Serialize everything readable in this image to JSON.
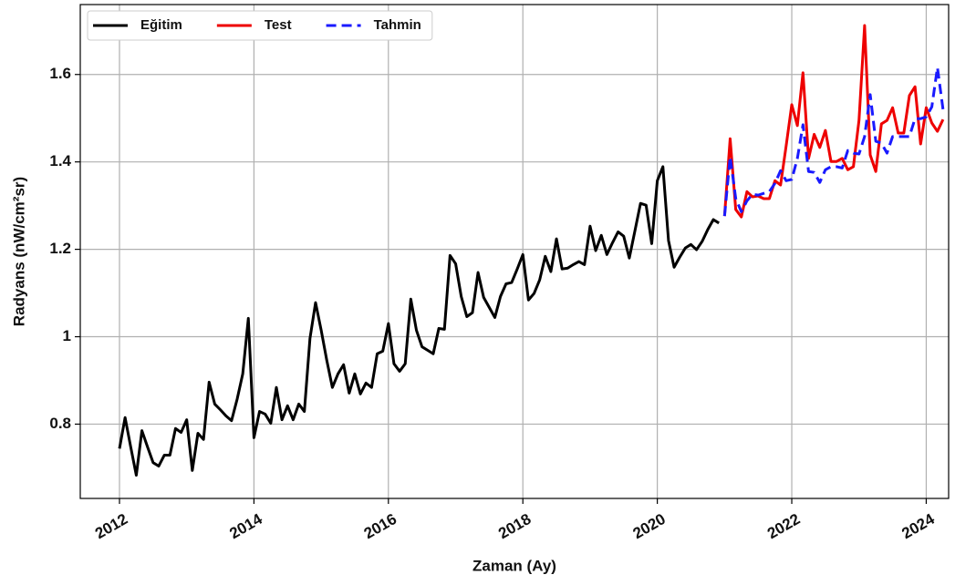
{
  "chart_data": {
    "type": "line",
    "xlabel": "Zaman (Ay)",
    "ylabel": "Radyans (nW/cm²sr)",
    "xlim": [
      "2011-06",
      "2024-05"
    ],
    "xticks": [
      "2012",
      "2014",
      "2016",
      "2018",
      "2020",
      "2022",
      "2024"
    ],
    "ylim": [
      0.63,
      1.76
    ],
    "yticks": [
      0.8,
      1.0,
      1.2,
      1.4,
      1.6
    ],
    "grid": true,
    "legend": "upper left",
    "series": [
      {
        "name": "Eğitim",
        "color": "#000000",
        "linestyle": "solid",
        "x": [
          "2012-01",
          "2012-02",
          "2012-03",
          "2012-04",
          "2012-05",
          "2012-06",
          "2012-07",
          "2012-08",
          "2012-09",
          "2012-10",
          "2012-11",
          "2012-12",
          "2013-01",
          "2013-02",
          "2013-03",
          "2013-04",
          "2013-05",
          "2013-06",
          "2013-07",
          "2013-08",
          "2013-09",
          "2013-10",
          "2013-11",
          "2013-12",
          "2014-01",
          "2014-02",
          "2014-03",
          "2014-04",
          "2014-05",
          "2014-06",
          "2014-07",
          "2014-08",
          "2014-09",
          "2014-10",
          "2014-11",
          "2014-12",
          "2015-01",
          "2015-02",
          "2015-03",
          "2015-04",
          "2015-05",
          "2015-06",
          "2015-07",
          "2015-08",
          "2015-09",
          "2015-10",
          "2015-11",
          "2015-12",
          "2016-01",
          "2016-02",
          "2016-03",
          "2016-04",
          "2016-05",
          "2016-06",
          "2016-07",
          "2016-08",
          "2016-09",
          "2016-10",
          "2016-11",
          "2016-12",
          "2017-01",
          "2017-02",
          "2017-03",
          "2017-04",
          "2017-05",
          "2017-06",
          "2017-07",
          "2017-08",
          "2017-09",
          "2017-10",
          "2017-11",
          "2017-12",
          "2018-01",
          "2018-02",
          "2018-03",
          "2018-04",
          "2018-05",
          "2018-06",
          "2018-07",
          "2018-08",
          "2018-09",
          "2018-10",
          "2018-11",
          "2018-12",
          "2019-01",
          "2019-02",
          "2019-03",
          "2019-04",
          "2019-05",
          "2019-06",
          "2019-07",
          "2019-08",
          "2019-09",
          "2019-10",
          "2019-11",
          "2019-12",
          "2020-01",
          "2020-02",
          "2020-03",
          "2020-04",
          "2020-05",
          "2020-06",
          "2020-07",
          "2020-08",
          "2020-09",
          "2020-10",
          "2020-11",
          "2020-12"
        ],
        "values": [
          0.744,
          0.815,
          0.748,
          0.683,
          0.785,
          0.748,
          0.712,
          0.704,
          0.729,
          0.729,
          0.79,
          0.781,
          0.81,
          0.694,
          0.779,
          0.765,
          0.896,
          0.846,
          0.833,
          0.819,
          0.808,
          0.857,
          0.915,
          1.042,
          0.769,
          0.829,
          0.823,
          0.802,
          0.884,
          0.81,
          0.842,
          0.81,
          0.846,
          0.829,
          0.996,
          1.078,
          1.015,
          0.946,
          0.884,
          0.915,
          0.936,
          0.871,
          0.915,
          0.869,
          0.894,
          0.884,
          0.961,
          0.967,
          1.03,
          0.938,
          0.921,
          0.938,
          1.086,
          1.015,
          0.977,
          0.969,
          0.961,
          1.019,
          1.017,
          1.186,
          1.167,
          1.092,
          1.046,
          1.055,
          1.147,
          1.09,
          1.067,
          1.044,
          1.092,
          1.121,
          1.124,
          1.155,
          1.188,
          1.084,
          1.099,
          1.13,
          1.184,
          1.149,
          1.224,
          1.155,
          1.157,
          1.165,
          1.172,
          1.165,
          1.253,
          1.197,
          1.232,
          1.188,
          1.215,
          1.24,
          1.23,
          1.18,
          1.242,
          1.305,
          1.301,
          1.213,
          1.357,
          1.389,
          1.22,
          1.159,
          1.182,
          1.203,
          1.211,
          1.199,
          1.218,
          1.245,
          1.268,
          1.26
        ]
      },
      {
        "name": "Test",
        "color": "#ee0000",
        "linestyle": "solid",
        "x": [
          "2021-01",
          "2021-02",
          "2021-03",
          "2021-04",
          "2021-05",
          "2021-06",
          "2021-07",
          "2021-08",
          "2021-09",
          "2021-10",
          "2021-11",
          "2021-12",
          "2022-01",
          "2022-02",
          "2022-03",
          "2022-04",
          "2022-05",
          "2022-06",
          "2022-07",
          "2022-08",
          "2022-09",
          "2022-10",
          "2022-11",
          "2022-12",
          "2023-01",
          "2023-02",
          "2023-03",
          "2023-04",
          "2023-05",
          "2023-06",
          "2023-07",
          "2023-08",
          "2023-09",
          "2023-10",
          "2023-11",
          "2023-12",
          "2024-01",
          "2024-02",
          "2024-03",
          "2024-04"
        ],
        "values": [
          1.276,
          1.453,
          1.291,
          1.274,
          1.332,
          1.32,
          1.322,
          1.316,
          1.316,
          1.357,
          1.347,
          1.437,
          1.531,
          1.483,
          1.604,
          1.408,
          1.463,
          1.433,
          1.472,
          1.401,
          1.401,
          1.408,
          1.382,
          1.389,
          1.495,
          1.712,
          1.416,
          1.378,
          1.487,
          1.495,
          1.524,
          1.466,
          1.466,
          1.552,
          1.572,
          1.441,
          1.524,
          1.489,
          1.47,
          1.497
        ]
      },
      {
        "name": "Tahmin",
        "color": "#1a1aff",
        "linestyle": "dashed",
        "x": [
          "2021-01",
          "2021-02",
          "2021-03",
          "2021-04",
          "2021-05",
          "2021-06",
          "2021-07",
          "2021-08",
          "2021-09",
          "2021-10",
          "2021-11",
          "2021-12",
          "2022-01",
          "2022-02",
          "2022-03",
          "2022-04",
          "2022-05",
          "2022-06",
          "2022-07",
          "2022-08",
          "2022-09",
          "2022-10",
          "2022-11",
          "2022-12",
          "2023-01",
          "2023-02",
          "2023-03",
          "2023-04",
          "2023-05",
          "2023-06",
          "2023-07",
          "2023-08",
          "2023-09",
          "2023-10",
          "2023-11",
          "2023-12",
          "2024-01",
          "2024-02",
          "2024-03",
          "2024-04"
        ],
        "values": [
          1.276,
          1.412,
          1.316,
          1.286,
          1.311,
          1.326,
          1.324,
          1.328,
          1.332,
          1.351,
          1.38,
          1.357,
          1.36,
          1.408,
          1.485,
          1.378,
          1.376,
          1.353,
          1.382,
          1.389,
          1.389,
          1.386,
          1.426,
          1.42,
          1.418,
          1.458,
          1.554,
          1.447,
          1.443,
          1.42,
          1.458,
          1.458,
          1.458,
          1.458,
          1.499,
          1.499,
          1.503,
          1.526,
          1.616,
          1.52
        ]
      }
    ]
  }
}
